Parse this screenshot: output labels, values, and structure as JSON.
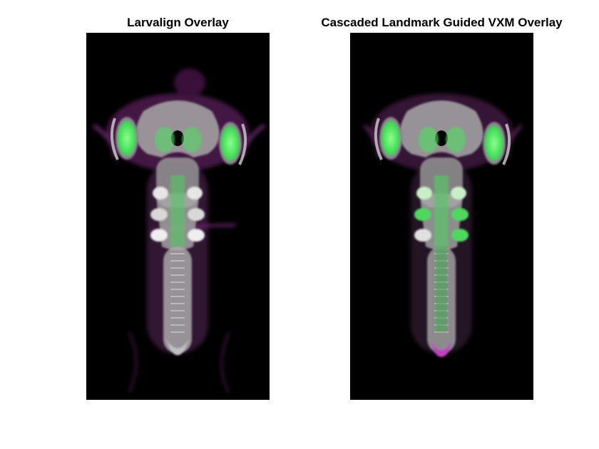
{
  "figure": {
    "panels": [
      {
        "title": "Larvalign Overlay",
        "image_icon": "brain-overlay-image"
      },
      {
        "title": "Cascaded Landmark Guided VXM Overlay",
        "image_icon": "brain-overlay-image"
      }
    ]
  },
  "colors": {
    "background": "#ffffff",
    "panel_background": "#000000",
    "channel_a": "#41ff5a",
    "channel_b": "#d030d0",
    "overlap": "#e8e8e8"
  }
}
